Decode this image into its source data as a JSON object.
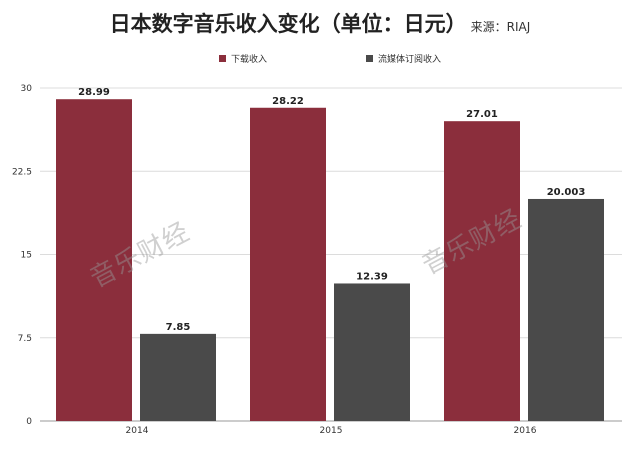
{
  "header": {
    "title": "日本数字音乐收入变化（单位：日元）",
    "source": "来源：RIAJ"
  },
  "watermarks": [
    "音乐财经",
    "音乐财经"
  ],
  "chart_data": {
    "type": "bar",
    "title": "日本数字音乐收入变化（单位：日元）",
    "categories": [
      "2014",
      "2015",
      "2016"
    ],
    "series": [
      {
        "name": "下载收入",
        "color": "#8b2e3c",
        "values": [
          28.99,
          28.22,
          27.01
        ],
        "labels": [
          "28.99",
          "28.22",
          "27.01"
        ]
      },
      {
        "name": "流媒体订阅收入",
        "color": "#4a4a4a",
        "values": [
          7.85,
          12.39,
          20.003
        ],
        "labels": [
          "7.85",
          "12.39",
          "20.003"
        ]
      }
    ],
    "yticks": [
      0,
      7.5,
      15,
      22.5,
      30
    ],
    "ytick_labels": [
      "0",
      "7.5",
      "15",
      "22.5",
      "30"
    ],
    "ylim": [
      0,
      30
    ],
    "grid": true,
    "legend_position": "top"
  }
}
